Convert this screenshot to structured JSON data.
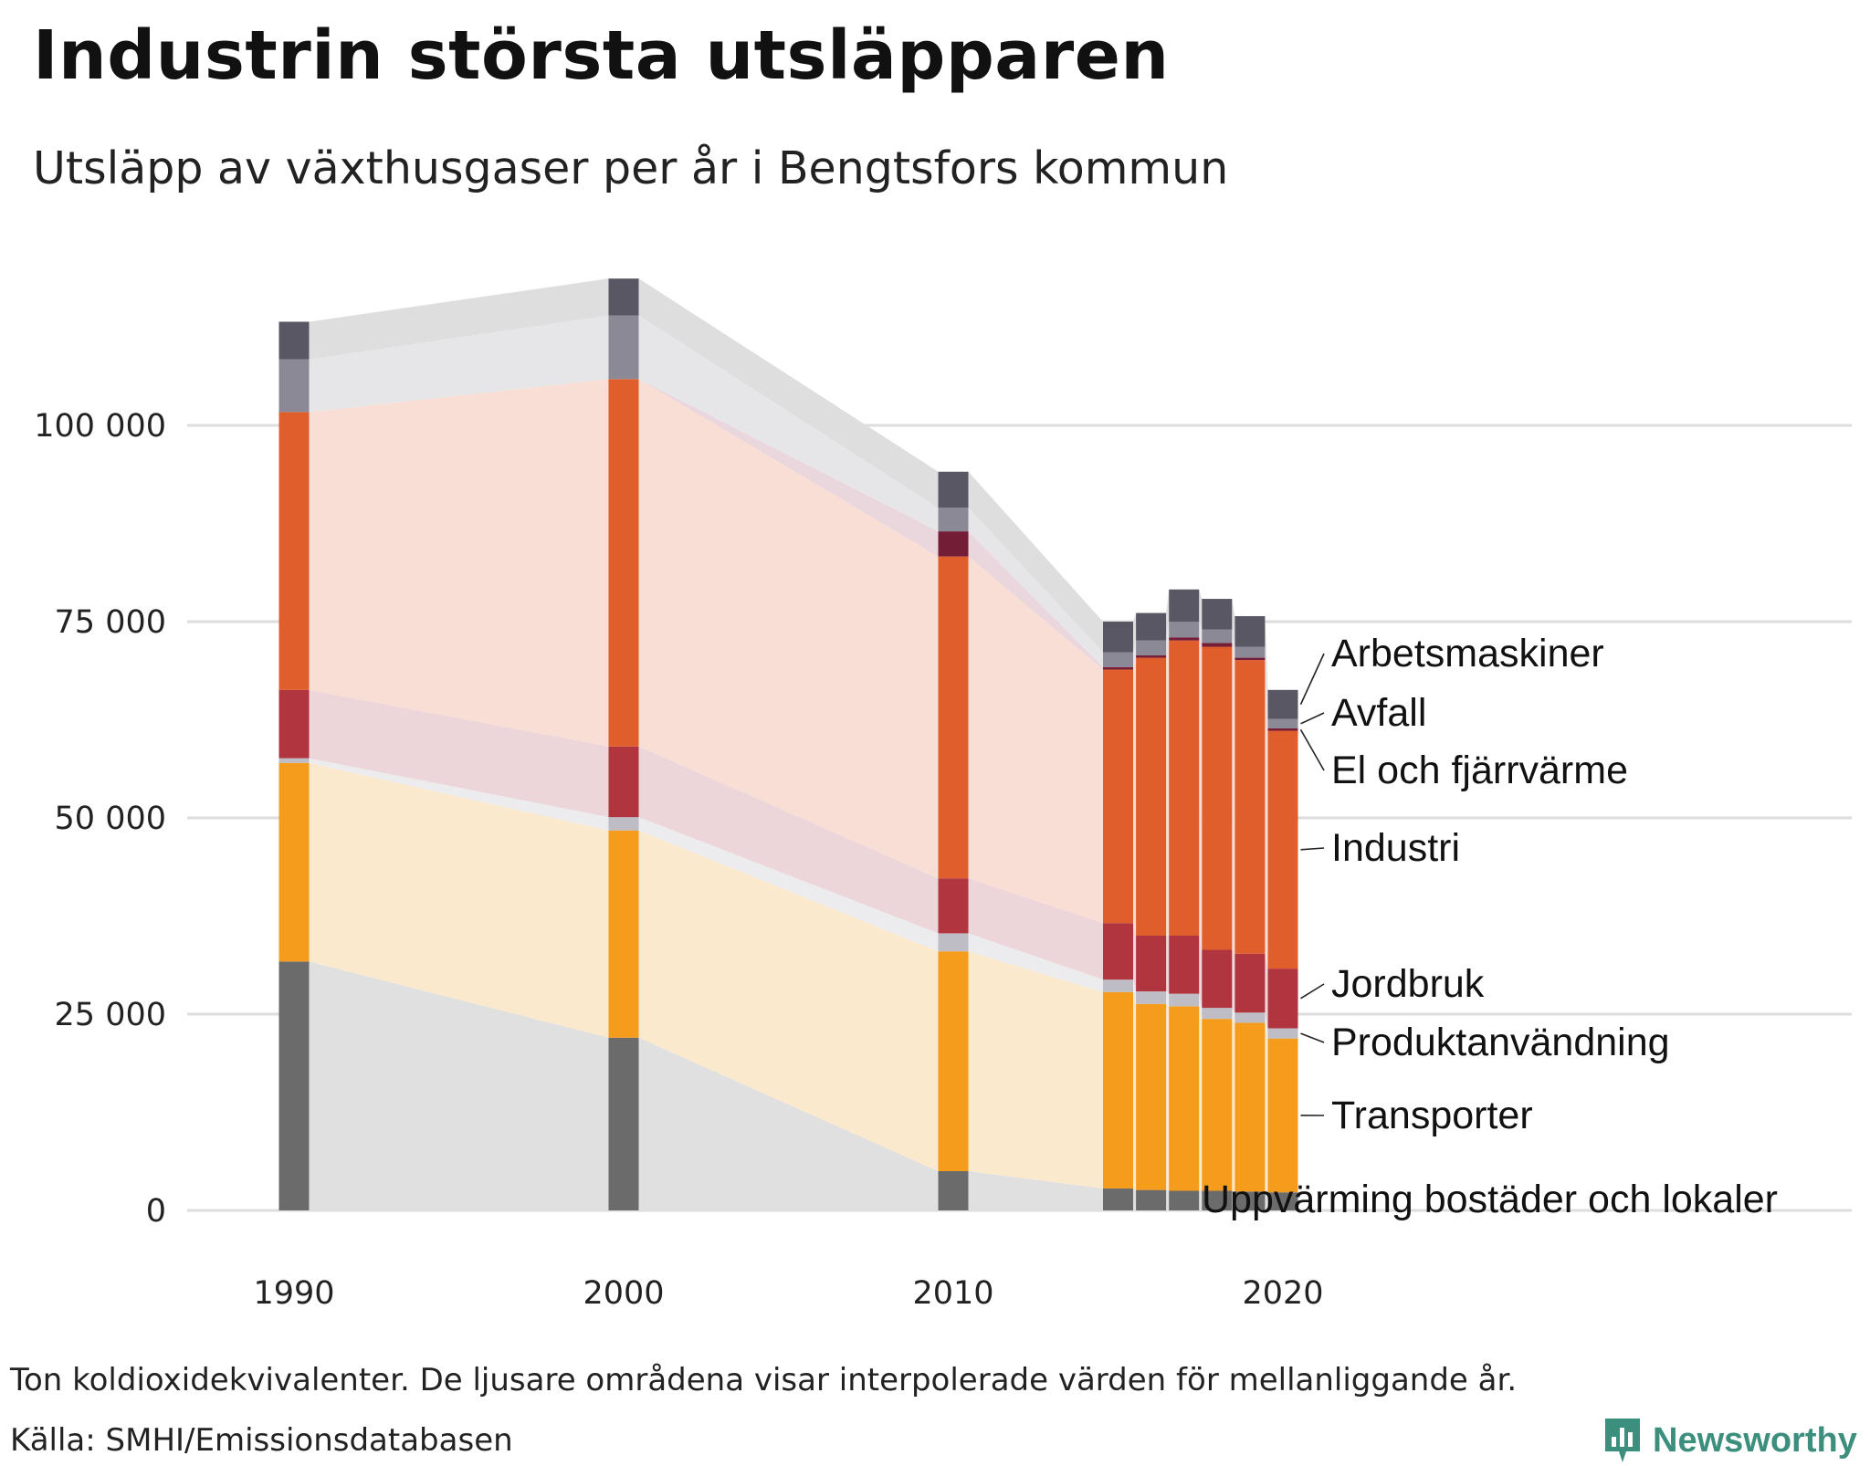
{
  "title": "Industrin största utsläpparen",
  "subtitle": "Utsläpp av växthusgaser per år i Bengtsfors kommun",
  "note": "Ton koldioxidekvivalenter. De ljusare områdena visar interpolerade värden för mellanliggande år.",
  "source": "Källa: SMHI/Emissionsdatabasen",
  "brand": "Newsworthy",
  "colors": {
    "brand": "#3d8f7d",
    "grid": "#dddddd",
    "background": "#ffffff"
  },
  "chart_data": {
    "type": "bar",
    "stacked": true,
    "x": [
      1990,
      2000,
      2010,
      2015,
      2016,
      2017,
      2018,
      2019,
      2020
    ],
    "ylim": [
      0,
      120000
    ],
    "yticks": [
      0,
      25000,
      50000,
      75000,
      100000
    ],
    "ytick_labels": [
      "0",
      "25 000",
      "50 000",
      "75 000",
      "100 000"
    ],
    "xticks": [
      1990,
      2000,
      2010,
      2020
    ],
    "xtick_labels": [
      "1990",
      "2000",
      "2010",
      "2020"
    ],
    "grid": true,
    "interpolated_areas": true,
    "series": [
      {
        "name": "Uppvärming bostäder och lokaler",
        "color": "#6b6b6b",
        "area_color": "#e0e0e0",
        "values": [
          31700,
          22000,
          5000,
          2800,
          2600,
          2500,
          2500,
          2400,
          2300
        ]
      },
      {
        "name": "Transporter",
        "color": "#f59c1c",
        "area_color": "#fbe9cd",
        "values": [
          25300,
          26400,
          28000,
          25000,
          23700,
          23500,
          21900,
          21500,
          19600
        ]
      },
      {
        "name": "Produktanvändning",
        "color": "#bebcc5",
        "area_color": "#ececef",
        "values": [
          600,
          1700,
          2300,
          1600,
          1600,
          1600,
          1400,
          1300,
          1300
        ]
      },
      {
        "name": "Jordbruk",
        "color": "#b1353f",
        "area_color": "#ecd6da",
        "values": [
          8700,
          9000,
          7000,
          7200,
          7100,
          7400,
          7400,
          7500,
          7600
        ]
      },
      {
        "name": "Industri",
        "color": "#e05d2c",
        "area_color": "#f9ded5",
        "values": [
          35400,
          46800,
          41000,
          32300,
          35400,
          37600,
          38600,
          37400,
          30300
        ]
      },
      {
        "name": "El och fjärrvärme",
        "color": "#741d37",
        "area_color": "#ead6dd",
        "values": [
          0,
          0,
          3200,
          300,
          300,
          400,
          500,
          300,
          300
        ]
      },
      {
        "name": "Avfall",
        "color": "#8c8996",
        "area_color": "#e6e6e8",
        "values": [
          6700,
          8100,
          3000,
          1900,
          1900,
          2000,
          1700,
          1400,
          1200
        ]
      },
      {
        "name": "Arbetsmaskiner",
        "color": "#5a5765",
        "area_color": "#dedede",
        "values": [
          4800,
          4700,
          4600,
          3900,
          3500,
          4100,
          3900,
          3900,
          3700
        ]
      }
    ]
  }
}
